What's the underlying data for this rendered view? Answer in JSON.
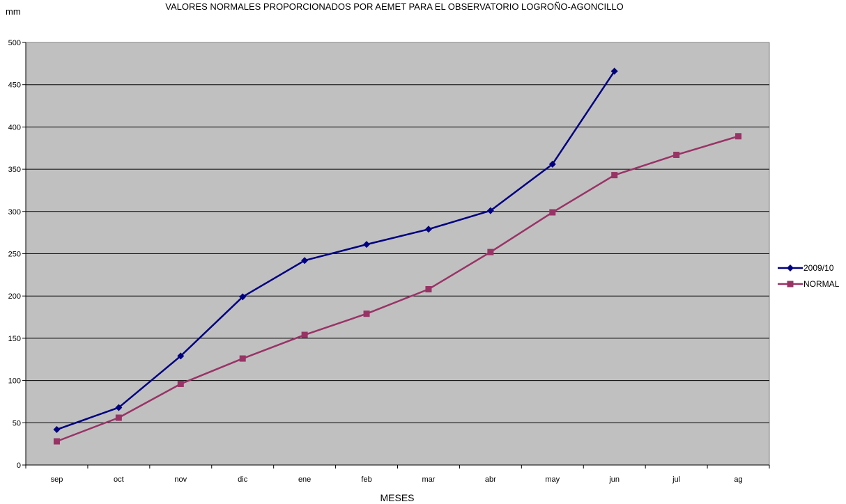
{
  "chart_data": {
    "type": "line",
    "title": "VALORES NORMALES PROPORCIONADOS POR AEMET PARA EL OBSERVATORIO LOGROÑO-AGONCILLO",
    "xlabel": "MESES",
    "ylabel": "mm",
    "ylim": [
      0,
      500
    ],
    "yticks": [
      0,
      50,
      100,
      150,
      200,
      250,
      300,
      350,
      400,
      450,
      500
    ],
    "grid": true,
    "legend_position": "right",
    "plot_background": "#C0C0C0",
    "categories": [
      "sep",
      "oct",
      "nov",
      "dic",
      "ene",
      "feb",
      "mar",
      "abr",
      "may",
      "jun",
      "jul",
      "ag"
    ],
    "series": [
      {
        "name": "2009/10",
        "color": "#000080",
        "marker": "diamond",
        "values": [
          42,
          68,
          129,
          199,
          242,
          261,
          279,
          301,
          356,
          466,
          null,
          null
        ]
      },
      {
        "name": "NORMAL",
        "color": "#993366",
        "marker": "square",
        "values": [
          28,
          56,
          96,
          126,
          154,
          179,
          208,
          252,
          299,
          343,
          367,
          389
        ]
      }
    ]
  }
}
